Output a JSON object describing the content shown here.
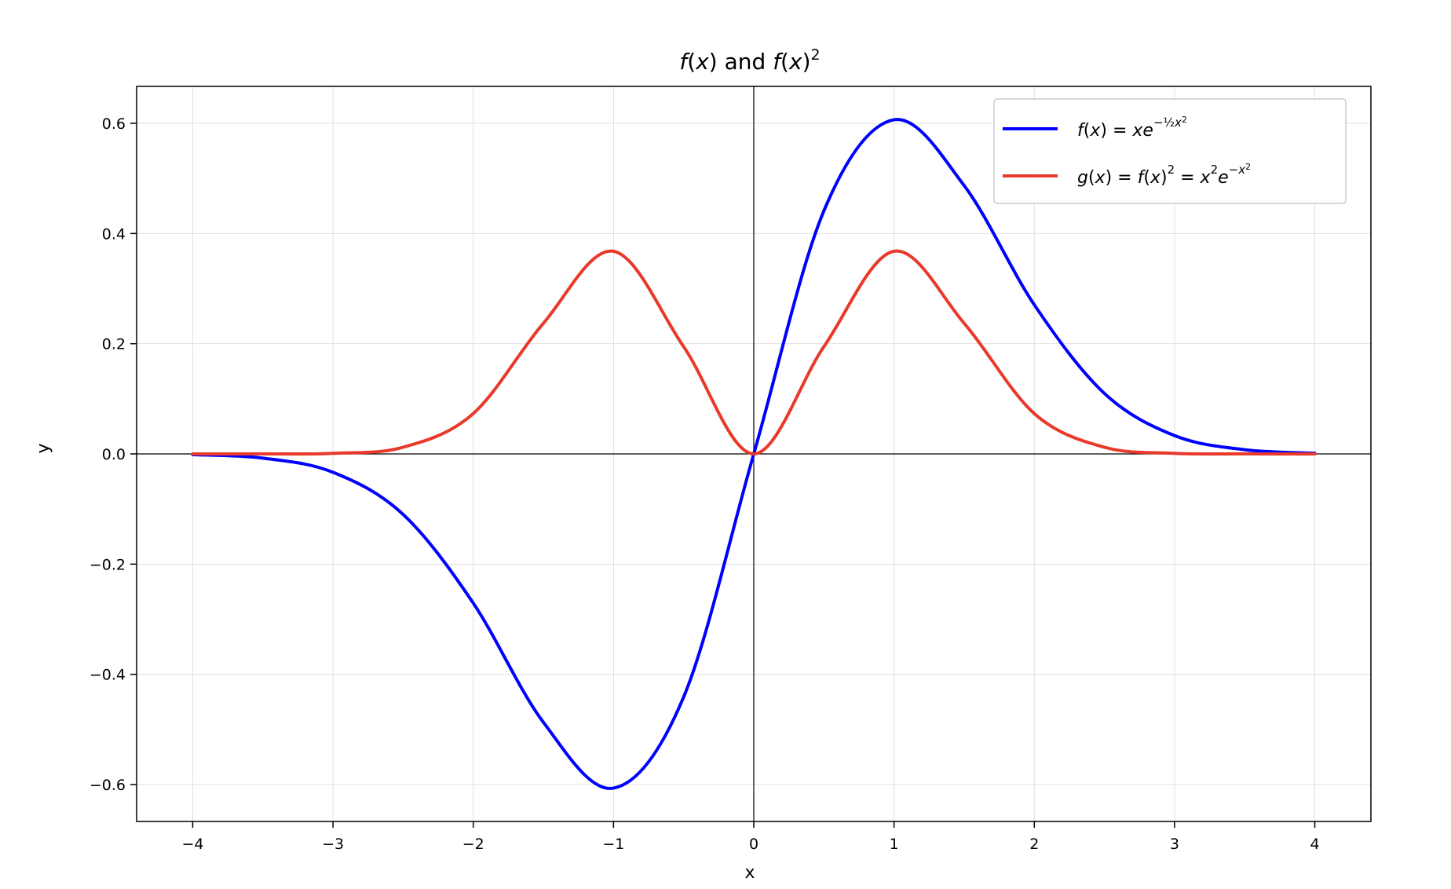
{
  "chart_data": {
    "type": "line",
    "title": "f(x) and f(x)²",
    "xlabel": "x",
    "ylabel": "y",
    "xlim": [
      -4.4,
      4.4
    ],
    "ylim": [
      -0.667,
      0.667
    ],
    "xticks": [
      -4,
      -3,
      -2,
      -1,
      0,
      1,
      2,
      3,
      4
    ],
    "xtick_labels": [
      "−4",
      "−3",
      "−2",
      "−1",
      "0",
      "1",
      "2",
      "3",
      "4"
    ],
    "yticks": [
      -0.6,
      -0.4,
      -0.2,
      0.0,
      0.2,
      0.4,
      0.6
    ],
    "ytick_labels": [
      "−0.6",
      "−0.4",
      "−0.2",
      "0.0",
      "0.2",
      "0.4",
      "0.6"
    ],
    "grid": true,
    "legend_position": "top-right",
    "x": [
      -4.0,
      -3.5,
      -3.0,
      -2.5,
      -2.0,
      -1.5,
      -1.0,
      -0.5,
      0.0,
      0.5,
      1.0,
      1.5,
      2.0,
      2.5,
      3.0,
      3.5,
      4.0
    ],
    "series": [
      {
        "name": "f(x) = xe^(−½x²)",
        "color": "#0000ff",
        "values": [
          -0.0013,
          -0.0076,
          -0.0333,
          -0.1098,
          -0.2707,
          -0.487,
          -0.6065,
          -0.4412,
          0.0,
          0.4412,
          0.6065,
          0.487,
          0.2707,
          0.1098,
          0.0333,
          0.0076,
          0.0013
        ]
      },
      {
        "name": "g(x) = f(x)² = x²e^(−x²)",
        "color": "#e8392b",
        "values": [
          0.0,
          0.0001,
          0.0011,
          0.0121,
          0.0733,
          0.2371,
          0.3679,
          0.1947,
          0.0,
          0.1947,
          0.3679,
          0.2371,
          0.0733,
          0.0121,
          0.0011,
          0.0001,
          0.0
        ]
      }
    ]
  }
}
